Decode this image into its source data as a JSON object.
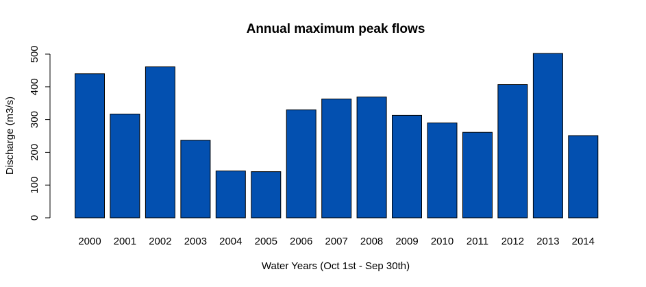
{
  "chart_data": {
    "type": "bar",
    "title": "Annual maximum peak flows",
    "xlabel": "Water Years (Oct 1st - Sep 30th)",
    "ylabel": "Discharge (m3/s)",
    "categories": [
      "2000",
      "2001",
      "2002",
      "2003",
      "2004",
      "2005",
      "2006",
      "2007",
      "2008",
      "2009",
      "2010",
      "2011",
      "2012",
      "2013",
      "2014"
    ],
    "values": [
      440,
      317,
      461,
      237,
      143,
      141,
      330,
      363,
      369,
      313,
      290,
      261,
      407,
      502,
      251
    ],
    "ylim": [
      0,
      500
    ],
    "yticks": [
      0,
      100,
      200,
      300,
      400,
      500
    ],
    "bar_color": "#0350B0",
    "grid": false,
    "legend": "none"
  }
}
